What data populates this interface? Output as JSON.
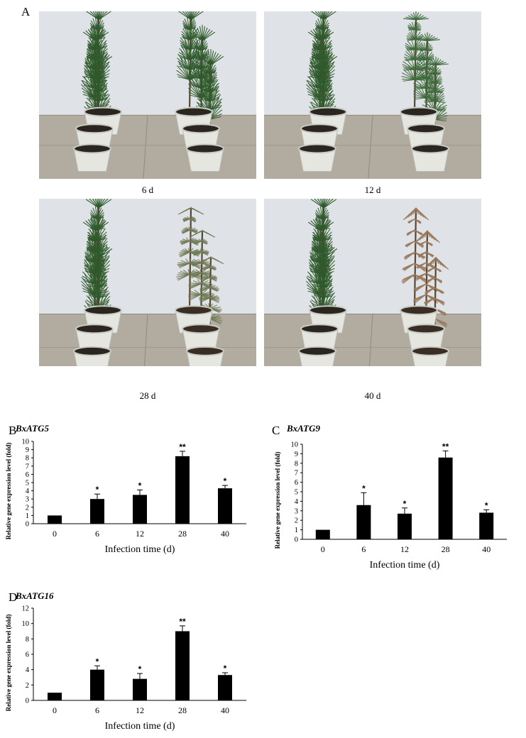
{
  "panels": {
    "a": {
      "letter": "A"
    },
    "b": {
      "letter": "B"
    },
    "c": {
      "letter": "C"
    },
    "d": {
      "letter": "D"
    }
  },
  "photos": [
    {
      "caption": "6 d",
      "stage": 0
    },
    {
      "caption": "12 d",
      "stage": 1
    },
    {
      "caption": "28 d",
      "stage": 2
    },
    {
      "caption": "40 d",
      "stage": 3
    }
  ],
  "colors": {
    "healthy_needles": "#2f5a2c",
    "wilting_needles": "#6f7a55",
    "dead_needles": "#9a7a5e",
    "wall": "#dfe2e6",
    "floor": "#b2aba0",
    "pot": "#e4e6df",
    "bar": "#000000"
  },
  "chart_data": [
    {
      "type": "bar",
      "title": "BxATG5",
      "xlabel": "Infection time (d)",
      "ylabel": "Relative gene expression level (fold)",
      "categories": [
        "0",
        "6",
        "12",
        "28",
        "40"
      ],
      "values": [
        1.0,
        3.0,
        3.5,
        8.2,
        4.3
      ],
      "errors": [
        0.05,
        0.6,
        0.6,
        0.6,
        0.35
      ],
      "significance": [
        "",
        "*",
        "*",
        "**",
        "*"
      ],
      "ylim": [
        0,
        10
      ],
      "yticks": [
        "0",
        "1",
        "2",
        "3",
        "4",
        "5",
        "6",
        "7",
        "8",
        "9",
        "10"
      ]
    },
    {
      "type": "bar",
      "title": "BxATG9",
      "xlabel": "Infection time (d)",
      "ylabel": "Relative gene expression level (fold)",
      "categories": [
        "0",
        "6",
        "12",
        "28",
        "40"
      ],
      "values": [
        1.0,
        3.6,
        2.7,
        8.6,
        2.8
      ],
      "errors": [
        0.05,
        1.3,
        0.6,
        0.7,
        0.3
      ],
      "significance": [
        "",
        "*",
        "*",
        "**",
        "*"
      ],
      "ylim": [
        0,
        10
      ],
      "yticks": [
        "0",
        "1",
        "2",
        "3",
        "4",
        "5",
        "6",
        "7",
        "8",
        "9",
        "10"
      ]
    },
    {
      "type": "bar",
      "title": "BxATG16",
      "xlabel": "Infection time (d)",
      "ylabel": "Relative gene expression level (fold)",
      "categories": [
        "0",
        "6",
        "12",
        "28",
        "40"
      ],
      "values": [
        1.0,
        4.0,
        2.8,
        9.0,
        3.3
      ],
      "errors": [
        0.05,
        0.5,
        0.7,
        0.7,
        0.3
      ],
      "significance": [
        "",
        "*",
        "*",
        "**",
        "*"
      ],
      "ylim": [
        0,
        12
      ],
      "yticks": [
        "0",
        "2",
        "4",
        "6",
        "8",
        "10",
        "12"
      ]
    }
  ]
}
